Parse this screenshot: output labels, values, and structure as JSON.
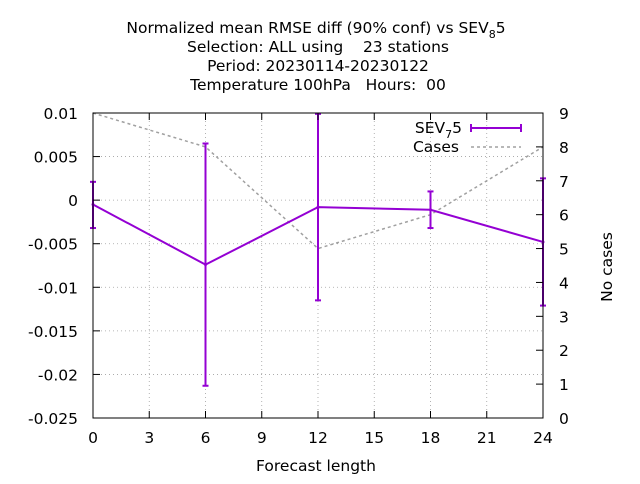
{
  "title": {
    "line1_prefix": "Normalized mean RMSE diff (90% conf) vs SEV",
    "line1_sub": "8",
    "line1_suffix": "5",
    "line2": "Selection: ALL using    23 stations",
    "line3": "Period: 20230114-20230122",
    "line4": "Temperature 100hPa   Hours:  00"
  },
  "colors": {
    "series": "#9400d3",
    "cases": "#a0a0a0",
    "grid": "#a0a0a0",
    "axis": "#000000"
  },
  "chart_data": {
    "type": "line",
    "xlabel": "Forecast length",
    "ylabel": "",
    "y2label": "No cases",
    "xlim": [
      0,
      24
    ],
    "ylim": [
      -0.025,
      0.01
    ],
    "y2lim": [
      0,
      9
    ],
    "grid": true,
    "legend_position": "top-right",
    "x_ticks": [
      "0",
      "3",
      "6",
      "9",
      "12",
      "15",
      "18",
      "21",
      "24"
    ],
    "y_ticks": [
      "0.01",
      "0.005",
      "0",
      "-0.005",
      "-0.01",
      "-0.015",
      "-0.02",
      "-0.025"
    ],
    "y2_ticks": [
      "9",
      "8",
      "7",
      "6",
      "5",
      "4",
      "3",
      "2",
      "1",
      "0"
    ],
    "series": [
      {
        "name_prefix": "SEV",
        "name_sub": "7",
        "name_suffix": "5",
        "x": [
          0,
          6,
          12,
          18,
          24
        ],
        "y": [
          -0.0005,
          -0.0074,
          -0.0008,
          -0.0011,
          -0.0048
        ],
        "err_low": [
          -0.0032,
          -0.0213,
          -0.0115,
          -0.0032,
          -0.0121
        ],
        "err_high": [
          0.0021,
          0.0065,
          0.0099,
          0.001,
          0.0025
        ]
      }
    ],
    "cases": {
      "name": "Cases",
      "x": [
        0,
        6,
        12,
        18,
        24
      ],
      "y": [
        9,
        8,
        5,
        6,
        8
      ]
    }
  }
}
